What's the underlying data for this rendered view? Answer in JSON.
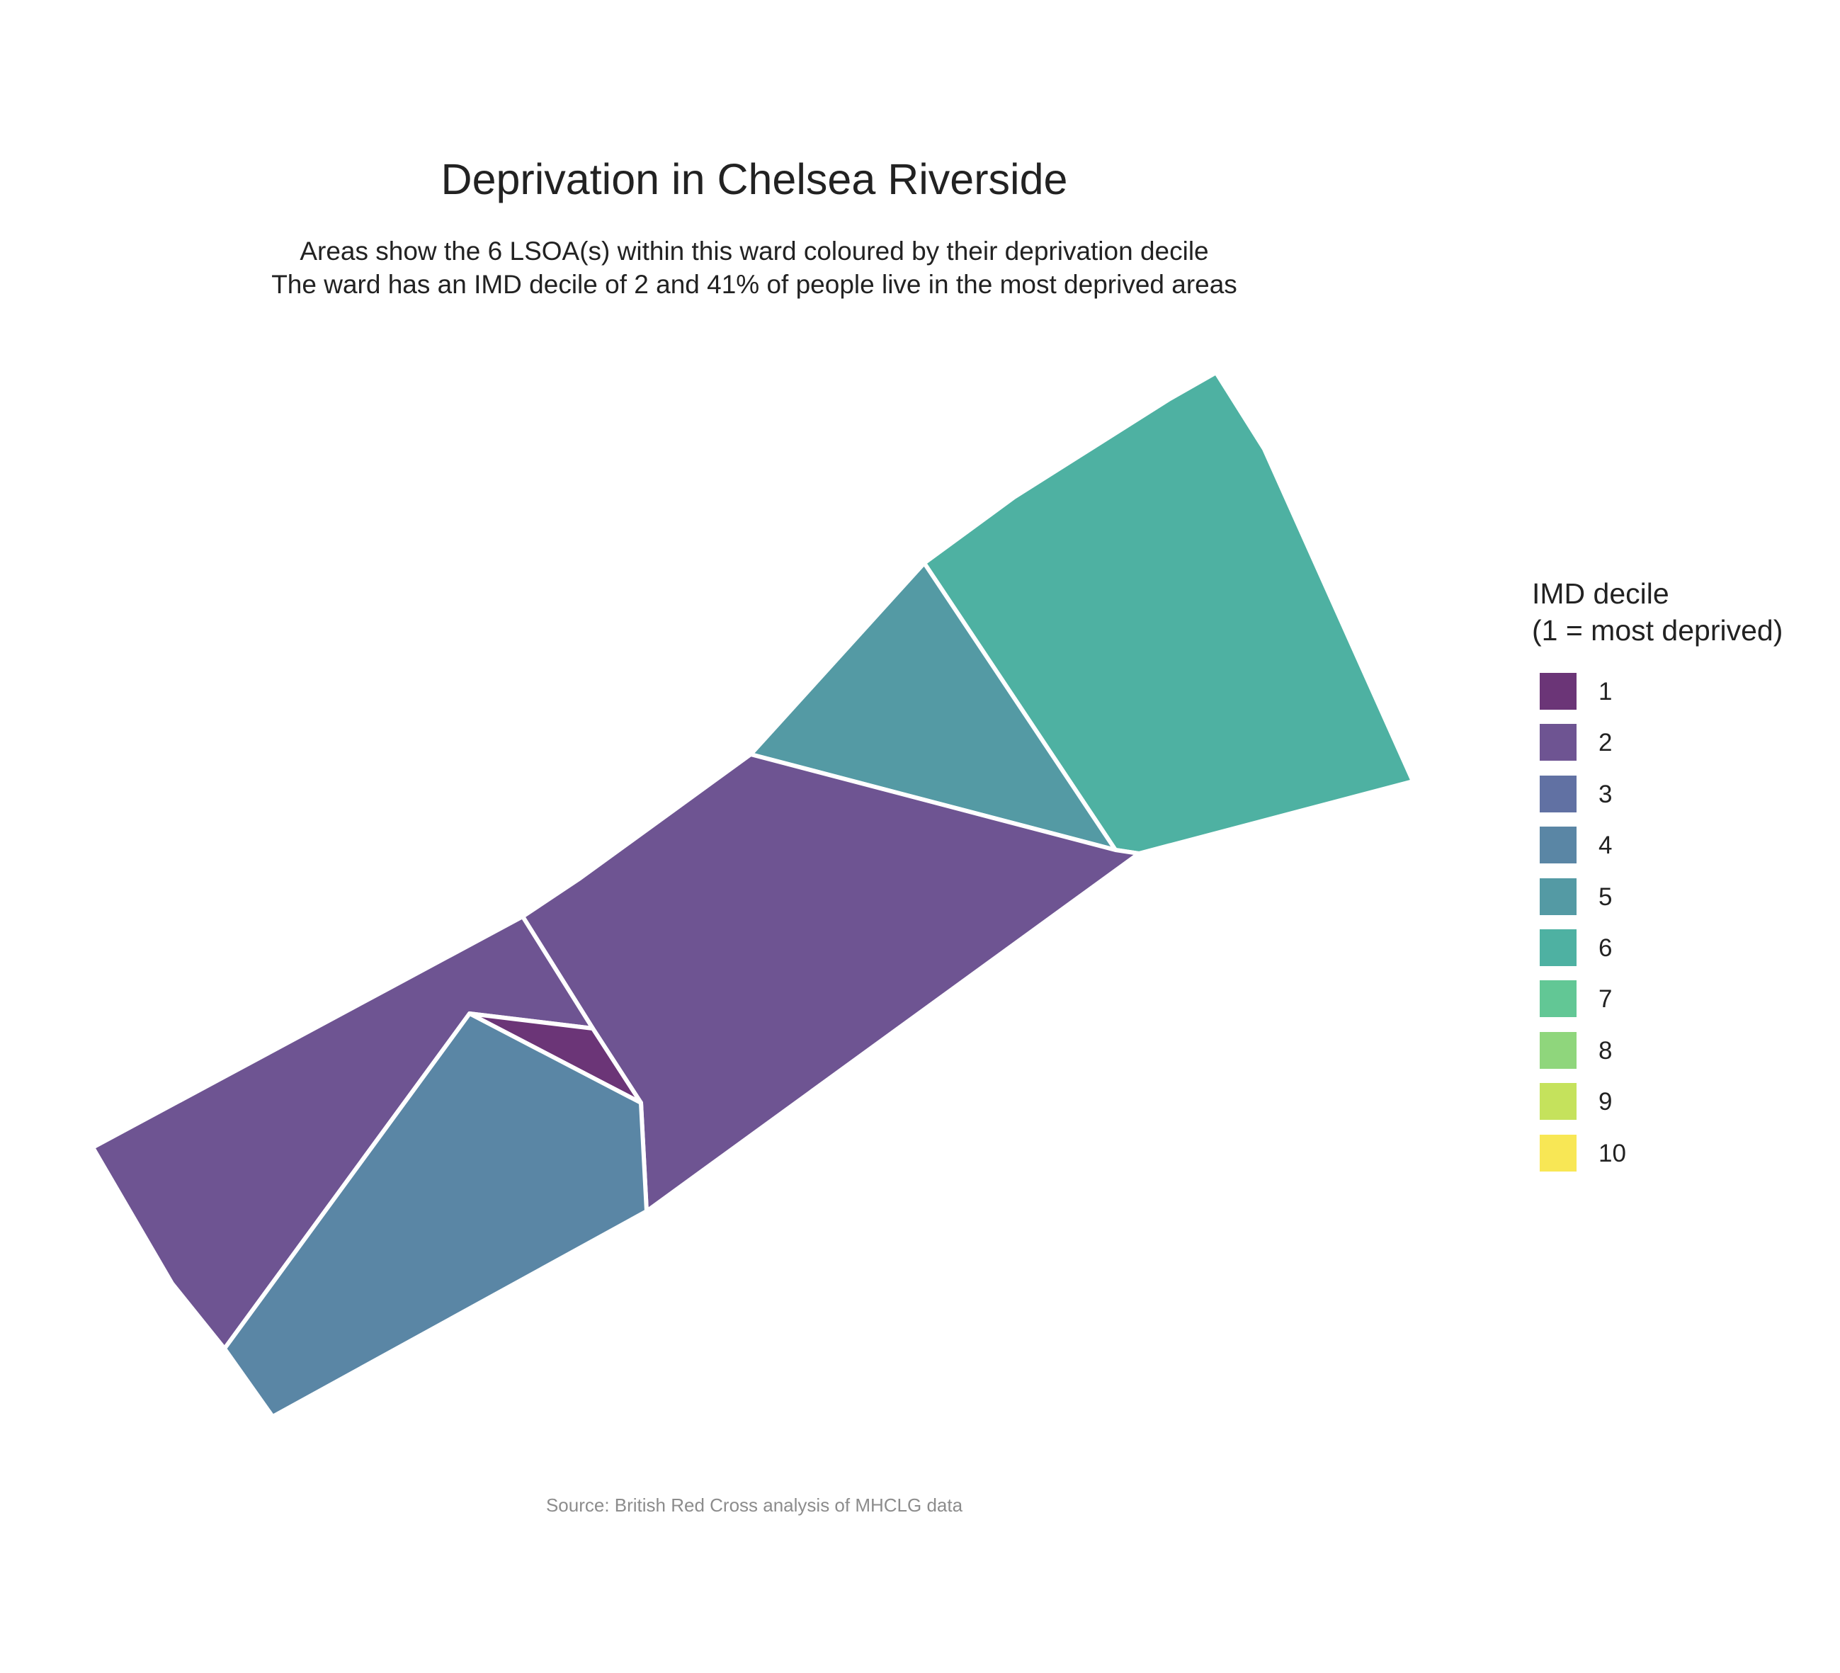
{
  "title": "Deprivation in Chelsea Riverside",
  "subtitle_line1": "Areas show the 6 LSOA(s) within this ward coloured by their deprivation decile",
  "subtitle_line2": "The ward has an IMD decile of 2 and 41% of people live in the most deprived areas",
  "caption": "Source: British Red Cross analysis of MHCLG data",
  "legend": {
    "title_line1": "IMD decile",
    "title_line2": "(1 = most deprived)",
    "items": [
      {
        "label": "1",
        "color": "#6b3577"
      },
      {
        "label": "2",
        "color": "#6e5492"
      },
      {
        "label": "3",
        "color": "#6171a3"
      },
      {
        "label": "4",
        "color": "#5a86a5"
      },
      {
        "label": "5",
        "color": "#549aa4"
      },
      {
        "label": "6",
        "color": "#4eb1a2"
      },
      {
        "label": "7",
        "color": "#62c795"
      },
      {
        "label": "8",
        "color": "#8fd67c"
      },
      {
        "label": "9",
        "color": "#c5e25c"
      },
      {
        "label": "10",
        "color": "#f8e755"
      }
    ]
  },
  "chart_data": {
    "type": "choropleth",
    "ward": "Chelsea Riverside",
    "ward_imd_decile": 2,
    "share_in_most_deprived_areas_pct": 41,
    "lsoa_count": 6,
    "lsoas": [
      {
        "id": "lsoa-ne",
        "decile": 6
      },
      {
        "id": "lsoa-north-triangle",
        "decile": 5
      },
      {
        "id": "lsoa-central",
        "decile": 2
      },
      {
        "id": "lsoa-west",
        "decile": 2
      },
      {
        "id": "lsoa-small-triangle",
        "decile": 1
      },
      {
        "id": "lsoa-south",
        "decile": 4
      }
    ]
  }
}
